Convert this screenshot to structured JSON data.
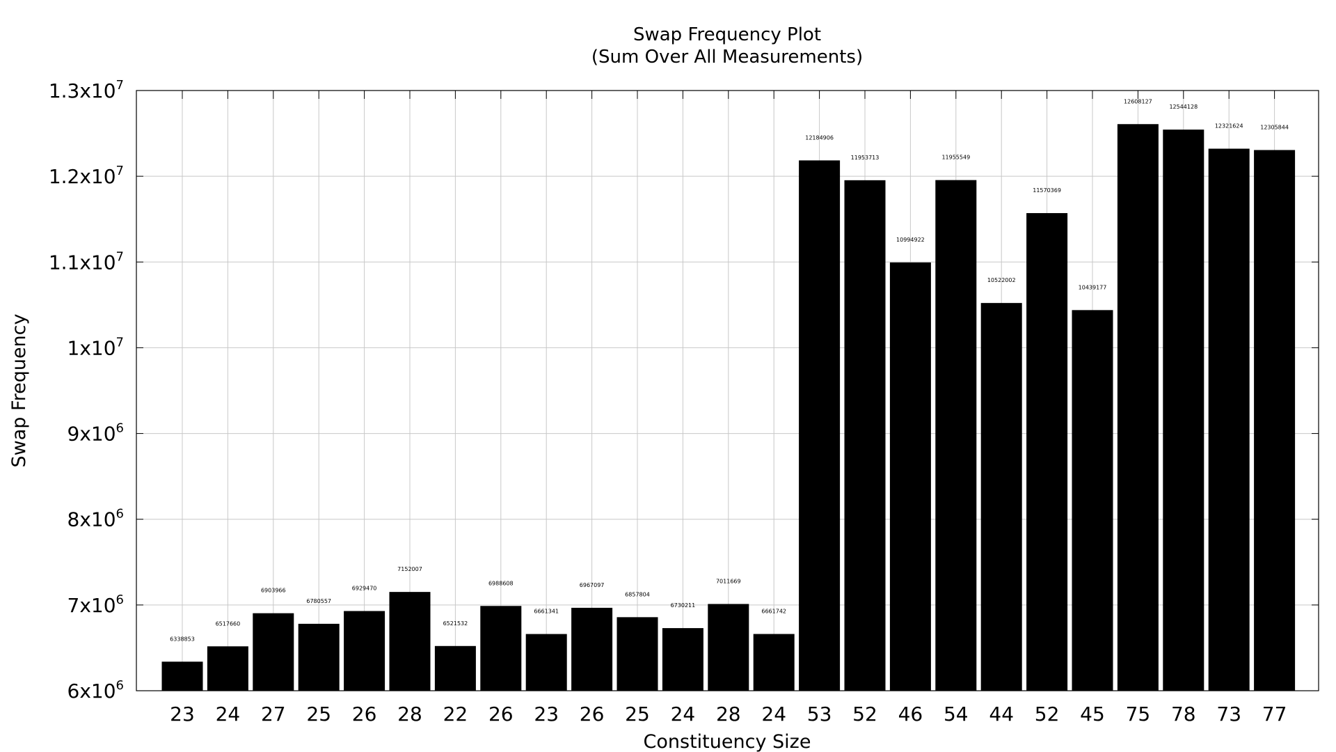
{
  "chart_data": {
    "type": "bar",
    "title": "Swap Frequency Plot",
    "subtitle": "(Sum Over All Measurements)",
    "xlabel": "Constituency Size",
    "ylabel": "Swap Frequency",
    "ylim": [
      6000000,
      13000000
    ],
    "yticks": [
      {
        "value": 6000000,
        "mantissa": "6x10",
        "exp": "6"
      },
      {
        "value": 7000000,
        "mantissa": "7x10",
        "exp": "6"
      },
      {
        "value": 8000000,
        "mantissa": "8x10",
        "exp": "6"
      },
      {
        "value": 9000000,
        "mantissa": "9x10",
        "exp": "6"
      },
      {
        "value": 10000000,
        "mantissa": "1x10",
        "exp": "7"
      },
      {
        "value": 11000000,
        "mantissa": "1.1x10",
        "exp": "7"
      },
      {
        "value": 12000000,
        "mantissa": "1.2x10",
        "exp": "7"
      },
      {
        "value": 13000000,
        "mantissa": "1.3x10",
        "exp": "7"
      }
    ],
    "grid": true,
    "bar_color": "#000000",
    "categories": [
      "23",
      "24",
      "27",
      "25",
      "26",
      "28",
      "22",
      "26",
      "23",
      "26",
      "25",
      "24",
      "28",
      "24",
      "53",
      "52",
      "46",
      "54",
      "44",
      "52",
      "45",
      "75",
      "78",
      "73",
      "77"
    ],
    "values": [
      6338853,
      6517660,
      6903966,
      6780557,
      6929470,
      7152007,
      6521532,
      6988608,
      6661341,
      6967097,
      6857804,
      6730211,
      7011669,
      6661742,
      12184906,
      11953713,
      10994922,
      11955549,
      10522002,
      11570369,
      10439177,
      12608127,
      12544128,
      12321624,
      12305844
    ]
  }
}
